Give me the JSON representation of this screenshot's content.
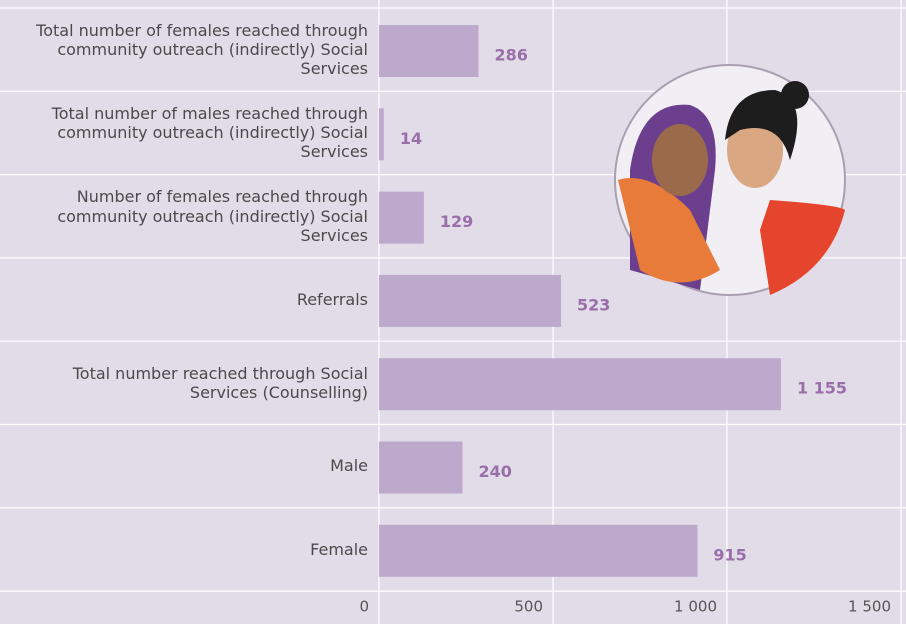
{
  "chart_data": {
    "type": "hbar",
    "categories": [
      "Total number of females reached through community outreach (indirectly) Social Services",
      "Total number of males reached through community outreach (indirectly) Social Services",
      "Number of females reached through community outreach (indirectly) Social Services",
      "Referrals",
      "Total number reached through Social Services (Counselling)",
      "Male",
      "Female"
    ],
    "values": [
      286,
      14,
      129,
      523,
      1155,
      240,
      915
    ],
    "value_labels": [
      "286",
      "14",
      "129",
      "523",
      "1 155",
      "240",
      "915"
    ],
    "color": "#bda9cc",
    "xlim": [
      0,
      1500
    ],
    "xticks": [
      0,
      500,
      {
        "value": 1000,
        "label": "1 000"
      },
      {
        "value": 1500,
        "label": "1 500"
      }
    ],
    "grid": true
  }
}
